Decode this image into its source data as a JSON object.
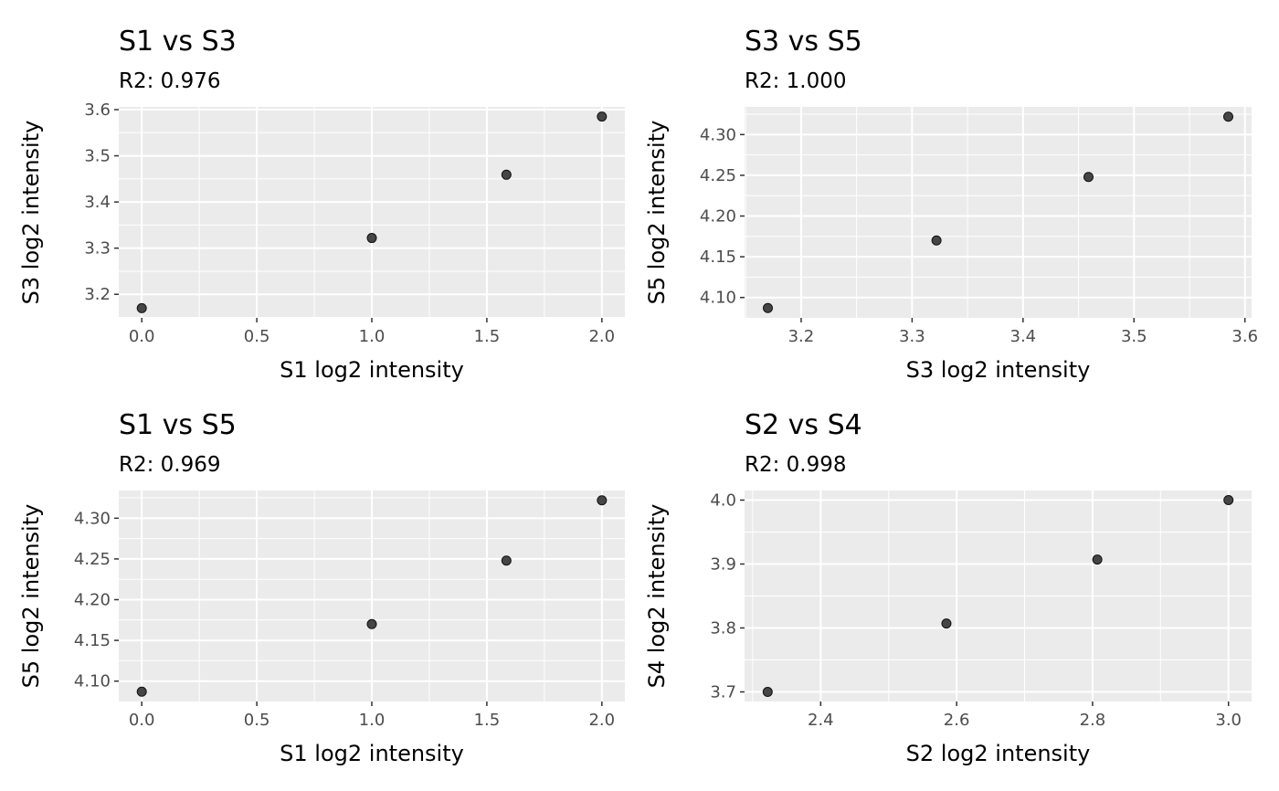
{
  "chart_data": [
    {
      "type": "scatter",
      "title": "S1 vs S3",
      "subtitle": "R2: 0.976",
      "xlabel": "S1 log2 intensity",
      "ylabel": "S3 log2 intensity",
      "x": [
        0,
        1,
        1.585,
        2
      ],
      "y": [
        3.17,
        3.322,
        3.459,
        3.585
      ],
      "xlim": [
        -0.1,
        2.1
      ],
      "ylim": [
        3.149,
        3.606
      ],
      "xticks": [
        0,
        0.5,
        1,
        1.5,
        2
      ],
      "xtick_labels": [
        "0.0",
        "0.5",
        "1.0",
        "1.5",
        "2.0"
      ],
      "yticks": [
        3.2,
        3.3,
        3.4,
        3.5,
        3.6
      ],
      "ytick_labels": [
        "3.2",
        "3.3",
        "3.4",
        "3.5",
        "3.6"
      ],
      "grid": true
    },
    {
      "type": "scatter",
      "title": "S3 vs S5",
      "subtitle": "R2: 1.000",
      "xlabel": "S3 log2 intensity",
      "ylabel": "S5 log2 intensity",
      "x": [
        3.17,
        3.322,
        3.459,
        3.585
      ],
      "y": [
        4.087,
        4.17,
        4.248,
        4.322
      ],
      "xlim": [
        3.149,
        3.606
      ],
      "ylim": [
        4.075,
        4.334
      ],
      "xticks": [
        3.2,
        3.3,
        3.4,
        3.5,
        3.6
      ],
      "xtick_labels": [
        "3.2",
        "3.3",
        "3.4",
        "3.5",
        "3.6"
      ],
      "yticks": [
        4.1,
        4.15,
        4.2,
        4.25,
        4.3
      ],
      "ytick_labels": [
        "4.10",
        "4.15",
        "4.20",
        "4.25",
        "4.30"
      ],
      "grid": true
    },
    {
      "type": "scatter",
      "title": "S1 vs S5",
      "subtitle": "R2: 0.969",
      "xlabel": "S1 log2 intensity",
      "ylabel": "S5 log2 intensity",
      "x": [
        0,
        1,
        1.585,
        2
      ],
      "y": [
        4.087,
        4.17,
        4.248,
        4.322
      ],
      "xlim": [
        -0.1,
        2.1
      ],
      "ylim": [
        4.075,
        4.334
      ],
      "xticks": [
        0,
        0.5,
        1,
        1.5,
        2
      ],
      "xtick_labels": [
        "0.0",
        "0.5",
        "1.0",
        "1.5",
        "2.0"
      ],
      "yticks": [
        4.1,
        4.15,
        4.2,
        4.25,
        4.3
      ],
      "ytick_labels": [
        "4.10",
        "4.15",
        "4.20",
        "4.25",
        "4.30"
      ],
      "grid": true
    },
    {
      "type": "scatter",
      "title": "S2 vs S4",
      "subtitle": "R2: 0.998",
      "xlabel": "S2 log2 intensity",
      "ylabel": "S4 log2 intensity",
      "x": [
        2.322,
        2.585,
        2.807,
        3.0
      ],
      "y": [
        3.7,
        3.807,
        3.907,
        4.0
      ],
      "xlim": [
        2.288,
        3.034
      ],
      "ylim": [
        3.685,
        4.015
      ],
      "xticks": [
        2.4,
        2.6,
        2.8,
        3.0
      ],
      "xtick_labels": [
        "2.4",
        "2.6",
        "2.8",
        "3.0"
      ],
      "yticks": [
        3.7,
        3.8,
        3.9,
        4.0
      ],
      "ytick_labels": [
        "3.7",
        "3.8",
        "3.9",
        "4.0"
      ],
      "grid": true
    }
  ],
  "colors": {
    "panel_bg": "#EBEBEB",
    "grid": "#FFFFFF",
    "point": "#333333"
  }
}
